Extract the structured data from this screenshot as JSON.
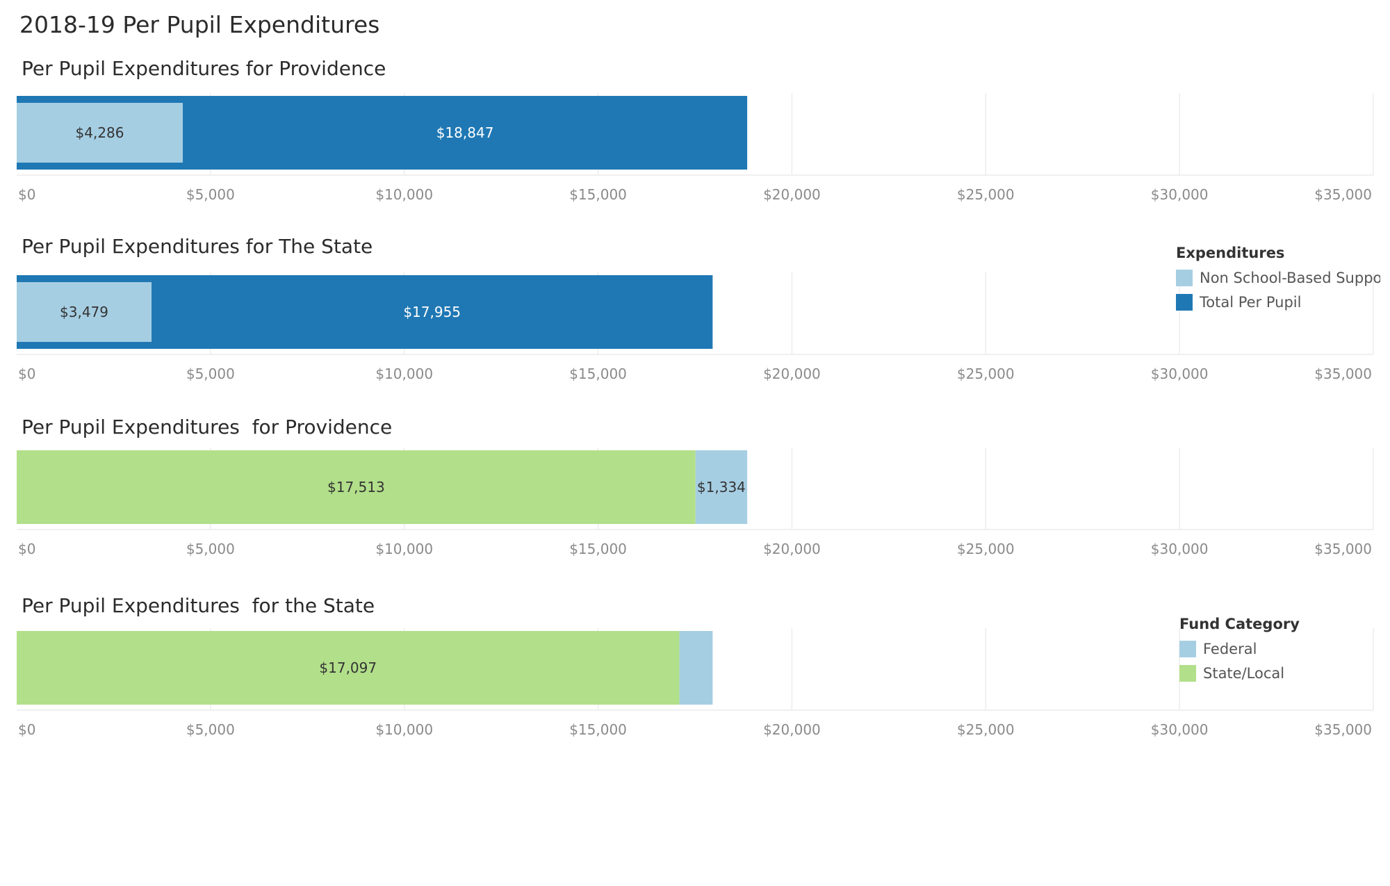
{
  "title": "2018-19 Per Pupil Expenditures",
  "colors": {
    "light_blue": "#a6cee3",
    "dark_blue": "#1f78b4",
    "green": "#b2df8a",
    "grid": "#ececec",
    "tick": "#8a8a8a"
  },
  "legends": {
    "expenditures": {
      "title": "Expenditures",
      "items": [
        {
          "label": "Non School-Based Suppo..",
          "color": "#a6cee3"
        },
        {
          "label": "Total Per Pupil",
          "color": "#1f78b4"
        }
      ]
    },
    "fund_category": {
      "title": "Fund Category",
      "items": [
        {
          "label": "Federal",
          "color": "#a6cee3"
        },
        {
          "label": "State/Local",
          "color": "#b2df8a"
        }
      ]
    }
  },
  "chart_data": [
    {
      "type": "bar",
      "orientation": "horizontal",
      "mode": "overlay",
      "title": "Per Pupil Expenditures for Providence",
      "xlim": [
        0,
        35000
      ],
      "ticks": [
        "$0",
        "$5,000",
        "$10,000",
        "$15,000",
        "$20,000",
        "$25,000",
        "$30,000",
        "$35,000"
      ],
      "tick_values": [
        0,
        5000,
        10000,
        15000,
        20000,
        25000,
        30000,
        35000
      ],
      "segments": [
        {
          "series": "Total Per Pupil",
          "value": 18847,
          "label": "$18,847",
          "color": "#1f78b4"
        },
        {
          "series": "Non School-Based Support",
          "value": 4286,
          "label": "$4,286",
          "color": "#a6cee3"
        }
      ]
    },
    {
      "type": "bar",
      "orientation": "horizontal",
      "mode": "overlay",
      "title": "Per Pupil Expenditures for The State",
      "xlim": [
        0,
        35000
      ],
      "ticks": [
        "$0",
        "$5,000",
        "$10,000",
        "$15,000",
        "$20,000",
        "$25,000",
        "$30,000",
        "$35,000"
      ],
      "tick_values": [
        0,
        5000,
        10000,
        15000,
        20000,
        25000,
        30000,
        35000
      ],
      "segments": [
        {
          "series": "Total Per Pupil",
          "value": 17955,
          "label": "$17,955",
          "color": "#1f78b4"
        },
        {
          "series": "Non School-Based Support",
          "value": 3479,
          "label": "$3,479",
          "color": "#a6cee3"
        }
      ]
    },
    {
      "type": "bar",
      "orientation": "horizontal",
      "mode": "stacked",
      "title": "Per Pupil Expenditures  for Providence",
      "xlim": [
        0,
        35000
      ],
      "ticks": [
        "$0",
        "$5,000",
        "$10,000",
        "$15,000",
        "$20,000",
        "$25,000",
        "$30,000",
        "$35,000"
      ],
      "tick_values": [
        0,
        5000,
        10000,
        15000,
        20000,
        25000,
        30000,
        35000
      ],
      "segments": [
        {
          "series": "State/Local",
          "value": 17513,
          "label": "$17,513",
          "color": "#b2df8a"
        },
        {
          "series": "Federal",
          "value": 1334,
          "label": "$1,334",
          "color": "#a6cee3"
        }
      ]
    },
    {
      "type": "bar",
      "orientation": "horizontal",
      "mode": "stacked",
      "title": "Per Pupil Expenditures  for the State",
      "xlim": [
        0,
        35000
      ],
      "ticks": [
        "$0",
        "$5,000",
        "$10,000",
        "$15,000",
        "$20,000",
        "$25,000",
        "$30,000",
        "$35,000"
      ],
      "tick_values": [
        0,
        5000,
        10000,
        15000,
        20000,
        25000,
        30000,
        35000
      ],
      "segments": [
        {
          "series": "State/Local",
          "value": 17097,
          "label": "$17,097",
          "color": "#b2df8a"
        },
        {
          "series": "Federal",
          "value": 858,
          "label": "",
          "color": "#a6cee3"
        }
      ]
    }
  ]
}
